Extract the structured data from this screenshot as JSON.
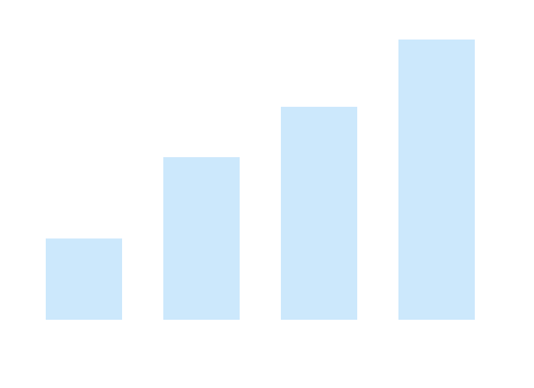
{
  "chart_data": {
    "type": "bar",
    "values": [
      29,
      58,
      76,
      100
    ],
    "color": "#cce8fc"
  }
}
